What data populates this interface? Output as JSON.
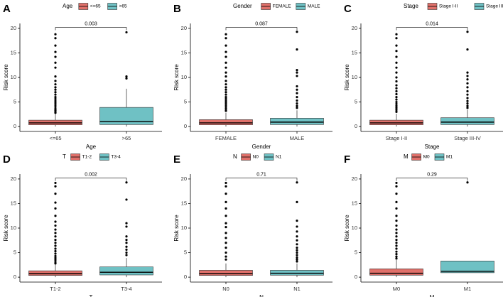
{
  "colors": {
    "group1": "#E0706A",
    "group2": "#6FC1C4",
    "axis": "#000000",
    "outlier": "#000000"
  },
  "chart_data": [
    {
      "type": "boxplot",
      "panel_label": "A",
      "legend_title": "Age",
      "legend_entries": [
        "<=65",
        ">65"
      ],
      "legend_position": "top",
      "categories": [
        "<=65",
        ">65"
      ],
      "xlabel": "Age",
      "ylabel": "Risk score",
      "ylim": [
        -1,
        21
      ],
      "yticks": [
        0,
        5,
        10,
        15,
        20
      ],
      "p_value": "0.003",
      "series": [
        {
          "name": "<=65",
          "q1": 0.35,
          "median": 0.75,
          "q3": 1.3,
          "whisker_low": 0.0,
          "whisker_high": 2.6,
          "outliers": [
            18.8,
            18.0,
            16.5,
            15.2,
            14.2,
            13.0,
            12.0,
            10.2,
            9.3,
            8.6,
            8.0,
            7.5,
            7.0,
            6.5,
            6.0,
            5.6,
            5.2,
            4.8,
            4.4,
            4.0,
            3.6,
            3.3,
            3.0,
            2.8
          ]
        },
        {
          "name": ">65",
          "q1": 0.4,
          "median": 1.0,
          "q3": 3.9,
          "whisker_low": 0.0,
          "whisker_high": 7.7,
          "outliers": [
            19.2,
            10.2,
            9.8
          ]
        }
      ]
    },
    {
      "type": "boxplot",
      "panel_label": "B",
      "legend_title": "Gender",
      "legend_entries": [
        "FEMALE",
        "MALE"
      ],
      "legend_position": "top",
      "categories": [
        "FEMALE",
        "MALE"
      ],
      "xlabel": "Gender",
      "ylabel": "Risk score",
      "ylim": [
        -1,
        21
      ],
      "yticks": [
        0,
        5,
        10,
        15,
        20
      ],
      "p_value": "0.087",
      "series": [
        {
          "name": "FEMALE",
          "q1": 0.35,
          "median": 0.75,
          "q3": 1.4,
          "whisker_low": 0.0,
          "whisker_high": 2.8,
          "outliers": [
            18.8,
            18.0,
            16.5,
            15.2,
            14.2,
            13.0,
            12.0,
            11.0,
            10.2,
            9.3,
            8.6,
            8.0,
            7.5,
            7.0,
            6.5,
            6.0,
            5.6,
            5.2,
            4.8,
            4.4,
            4.0,
            3.6,
            3.2
          ]
        },
        {
          "name": "MALE",
          "q1": 0.4,
          "median": 0.9,
          "q3": 1.7,
          "whisker_low": 0.0,
          "whisker_high": 3.3,
          "outliers": [
            19.3,
            15.7,
            11.5,
            11.0,
            10.3,
            8.2,
            7.5,
            6.8,
            6.0,
            5.3,
            4.7,
            4.2,
            3.8
          ]
        }
      ]
    },
    {
      "type": "boxplot",
      "panel_label": "C",
      "legend_title": "Stage",
      "legend_entries": [
        "Stage I-II",
        "Stage III-IV"
      ],
      "legend_position": "top",
      "categories": [
        "Stage I-II",
        "Stage III-IV"
      ],
      "xlabel": "Stage",
      "ylabel": "Risk score",
      "ylim": [
        -1,
        21
      ],
      "yticks": [
        0,
        5,
        10,
        15,
        20
      ],
      "p_value": "0.014",
      "series": [
        {
          "name": "Stage I-II",
          "q1": 0.35,
          "median": 0.75,
          "q3": 1.3,
          "whisker_low": 0.0,
          "whisker_high": 2.6,
          "outliers": [
            18.8,
            18.0,
            16.5,
            15.4,
            14.2,
            13.0,
            12.0,
            11.0,
            10.0,
            9.2,
            8.4,
            7.8,
            7.2,
            6.6,
            6.0,
            5.5,
            5.0,
            4.6,
            4.2,
            3.8,
            3.4,
            3.0
          ]
        },
        {
          "name": "Stage III-IV",
          "q1": 0.4,
          "median": 0.9,
          "q3": 1.8,
          "whisker_low": 0.0,
          "whisker_high": 3.4,
          "outliers": [
            19.3,
            15.7,
            11.0,
            10.3,
            9.6,
            8.8,
            8.0,
            7.2,
            6.5,
            5.8,
            5.2,
            4.7,
            4.2,
            3.8
          ]
        }
      ]
    },
    {
      "type": "boxplot",
      "panel_label": "D",
      "legend_title": "T",
      "legend_entries": [
        "T1-2",
        "T3-4"
      ],
      "legend_position": "top",
      "categories": [
        "T1-2",
        "T3-4"
      ],
      "xlabel": "T",
      "ylabel": "Risk score",
      "ylim": [
        -1,
        21
      ],
      "yticks": [
        0,
        5,
        10,
        15,
        20
      ],
      "p_value": "0.002",
      "series": [
        {
          "name": "T1-2",
          "q1": 0.35,
          "median": 0.7,
          "q3": 1.3,
          "whisker_low": 0.0,
          "whisker_high": 2.6,
          "outliers": [
            19.2,
            18.5,
            17.0,
            15.2,
            14.0,
            12.5,
            11.3,
            10.5,
            9.7,
            9.0,
            8.3,
            7.6,
            7.0,
            6.4,
            5.8,
            5.3,
            4.8,
            4.3,
            3.9,
            3.5,
            3.1,
            2.8
          ]
        },
        {
          "name": "T3-4",
          "q1": 0.45,
          "median": 1.0,
          "q3": 2.1,
          "whisker_low": 0.0,
          "whisker_high": 3.9,
          "outliers": [
            19.3,
            15.8,
            11.0,
            10.3,
            8.3,
            7.6,
            7.0,
            6.2,
            5.6,
            5.0,
            4.5
          ]
        }
      ]
    },
    {
      "type": "boxplot",
      "panel_label": "E",
      "legend_title": "N",
      "legend_entries": [
        "N0",
        "N1"
      ],
      "legend_position": "top",
      "categories": [
        "N0",
        "N1"
      ],
      "xlabel": "N",
      "ylabel": "Risk score",
      "ylim": [
        -1,
        21
      ],
      "yticks": [
        0,
        5,
        10,
        15,
        20
      ],
      "p_value": "0.71",
      "series": [
        {
          "name": "N0",
          "q1": 0.35,
          "median": 0.75,
          "q3": 1.4,
          "whisker_low": 0.0,
          "whisker_high": 2.8,
          "outliers": [
            19.2,
            18.5,
            17.0,
            15.3,
            14.0,
            12.5,
            11.0,
            10.2,
            9.0,
            8.0,
            7.0,
            6.0,
            5.0,
            4.2,
            3.6
          ]
        },
        {
          "name": "N1",
          "q1": 0.4,
          "median": 0.8,
          "q3": 1.4,
          "whisker_low": 0.0,
          "whisker_high": 2.8,
          "outliers": [
            19.3,
            15.3,
            11.5,
            10.3,
            9.3,
            8.3,
            7.5,
            6.7,
            6.0,
            5.5,
            5.0,
            4.5,
            4.0,
            3.6,
            3.2
          ]
        }
      ]
    },
    {
      "type": "boxplot",
      "panel_label": "F",
      "legend_title": "M",
      "legend_entries": [
        "M0",
        "M1"
      ],
      "legend_position": "top",
      "categories": [
        "M0",
        "M1"
      ],
      "xlabel": "M",
      "ylabel": "Risk score",
      "ylim": [
        -1,
        21
      ],
      "yticks": [
        0,
        5,
        10,
        15,
        20
      ],
      "p_value": "0.29",
      "series": [
        {
          "name": "M0",
          "q1": 0.4,
          "median": 0.8,
          "q3": 1.7,
          "whisker_low": 0.0,
          "whisker_high": 3.5,
          "outliers": [
            19.2,
            18.5,
            17.0,
            15.3,
            14.0,
            12.5,
            11.5,
            10.5,
            9.7,
            9.0,
            8.3,
            7.6,
            7.0,
            6.4,
            5.8,
            5.2,
            4.7,
            4.2,
            3.8
          ]
        },
        {
          "name": "M1",
          "q1": 0.9,
          "median": 1.2,
          "q3": 3.3,
          "whisker_low": 0.9,
          "whisker_high": 3.3,
          "outliers": [
            19.3
          ]
        }
      ]
    }
  ]
}
